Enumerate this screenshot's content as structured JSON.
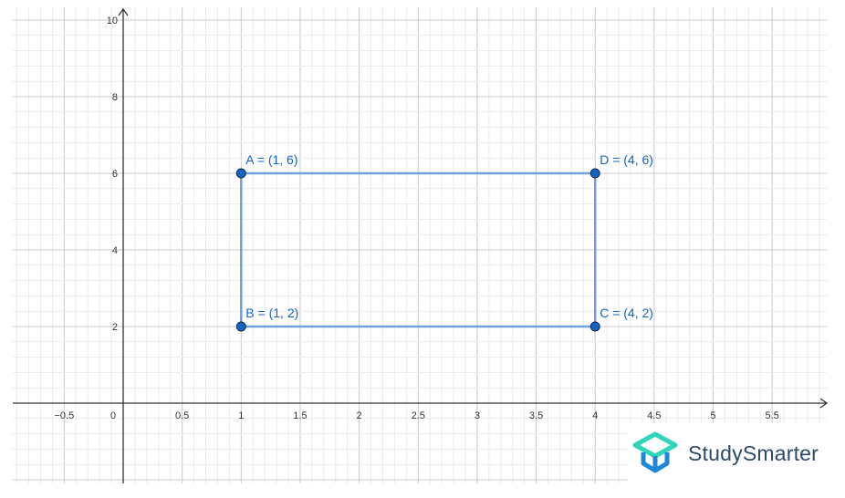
{
  "chart_data": {
    "type": "scatter",
    "title": "",
    "xlabel": "",
    "ylabel": "",
    "xlim": [
      -0.95,
      5.95
    ],
    "ylim": [
      -2.1,
      10.3
    ],
    "grid": true,
    "x_ticks": [
      "−0.5",
      "0",
      "0.5",
      "1",
      "1.5",
      "2",
      "2.5",
      "3",
      "3.5",
      "4",
      "4.5",
      "5",
      "5.5"
    ],
    "x_tick_values": [
      -0.5,
      0,
      0.5,
      1,
      1.5,
      2,
      2.5,
      3,
      3.5,
      4,
      4.5,
      5,
      5.5
    ],
    "y_ticks": [
      "2",
      "4",
      "6",
      "8",
      "10"
    ],
    "y_tick_values": [
      2,
      4,
      6,
      8,
      10
    ],
    "points": [
      {
        "name": "A",
        "x": 1,
        "y": 6,
        "label": "A = (1, 6)"
      },
      {
        "name": "B",
        "x": 1,
        "y": 2,
        "label": "B = (1, 2)"
      },
      {
        "name": "C",
        "x": 4,
        "y": 2,
        "label": "C = (4, 2)"
      },
      {
        "name": "D",
        "x": 4,
        "y": 6,
        "label": "D = (4, 6)"
      }
    ],
    "polygon": [
      "A",
      "D",
      "C",
      "B"
    ],
    "colors": {
      "point": "#1565c0",
      "polygon": "#6fa0dc",
      "axis": "#333333",
      "grid_major": "#c8c8c8",
      "grid_minor": "#ececec"
    }
  },
  "logo": {
    "text": "StudySmarter",
    "colors": {
      "top": "#2fd6b8",
      "bottom": "#1e88d8",
      "text": "#2c4a6b"
    }
  }
}
